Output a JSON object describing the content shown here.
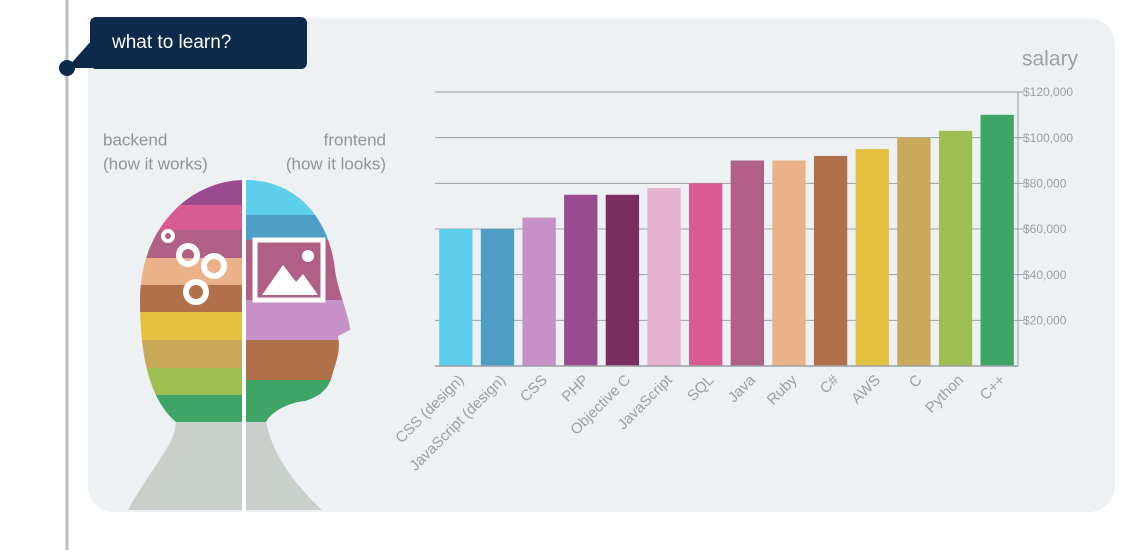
{
  "chart_data": {
    "type": "bar",
    "title": "what to learn?",
    "y_label": "salary",
    "annotations": [
      "backend",
      "(how it works)",
      "frontend",
      "(how it looks)"
    ],
    "categories": [
      "CSS (design)",
      "JavaScript (design)",
      "CSS",
      "PHP",
      "Objective C",
      "JavaScript",
      "SQL",
      "Java",
      "Ruby",
      "C#",
      "AWS",
      "C",
      "Python",
      "C++"
    ],
    "values": [
      60000,
      60000,
      65000,
      75000,
      75000,
      78000,
      80000,
      90000,
      90000,
      92000,
      95000,
      100000,
      103000,
      110000
    ],
    "colors": [
      "#5dcfec",
      "#4e9dc4",
      "#c591c6",
      "#9a4a8e",
      "#7a2d63",
      "#e3b3cf",
      "#d95b93",
      "#b05f85",
      "#ebb188",
      "#b0704a",
      "#e3c03e",
      "#c9a85a",
      "#9dbf52",
      "#3fa566"
    ],
    "ylim": [
      0,
      120000
    ],
    "yticks": [
      {
        "value": 20000,
        "label": "$20,000"
      },
      {
        "value": 40000,
        "label": "$40,000"
      },
      {
        "value": 60000,
        "label": "$60,000"
      },
      {
        "value": 80000,
        "label": "$80,000"
      },
      {
        "value": 100000,
        "label": "$100,000"
      },
      {
        "value": 120000,
        "label": "$120,000"
      }
    ],
    "grid": true
  }
}
